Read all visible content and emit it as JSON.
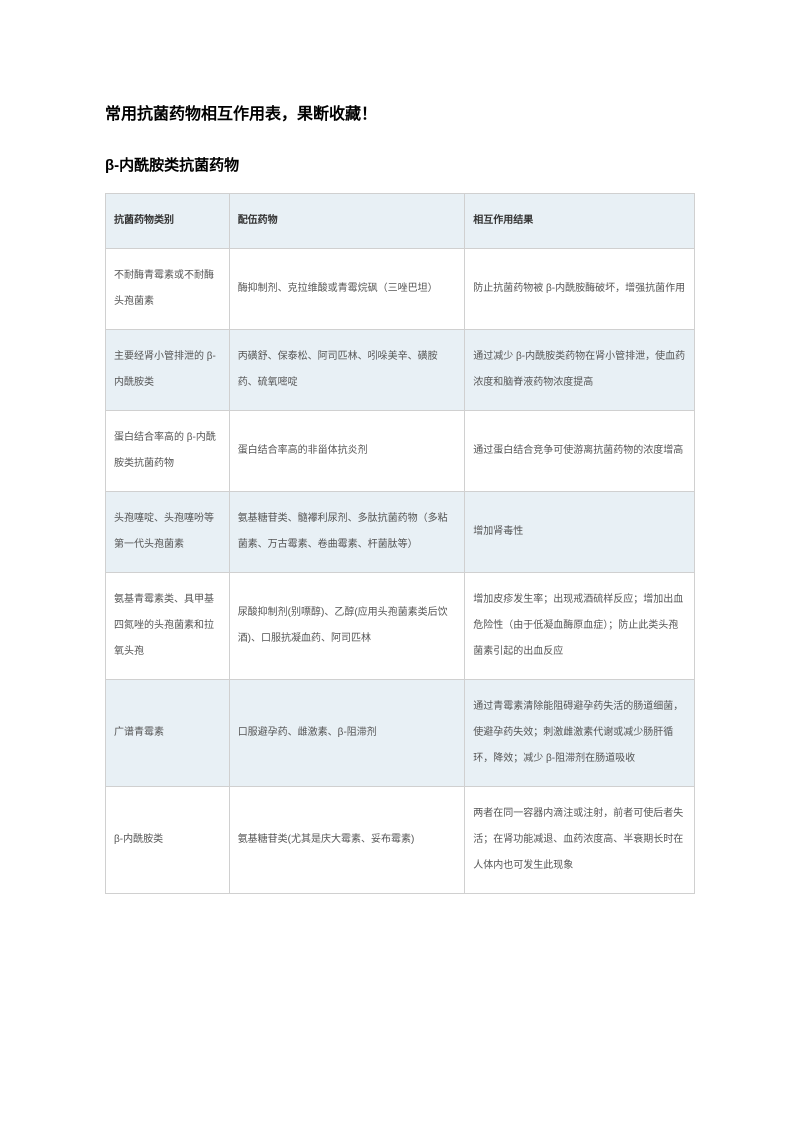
{
  "document": {
    "title": "常用抗菌药物相互作用表，果断收藏！",
    "subtitle": "β-内酰胺类抗菌药物"
  },
  "table": {
    "headers": {
      "col1": "抗菌药物类别",
      "col2": "配伍药物",
      "col3": "相互作用结果"
    },
    "rows": [
      {
        "col1": "不耐酶青霉素或不耐酶头孢菌素",
        "col2": "酶抑制剂、克拉维酸或青霉烷砜（三唑巴坦）",
        "col3": "防止抗菌药物被 β-内酰胺酶破坏，增强抗菌作用"
      },
      {
        "col1": "主要经肾小管排泄的 β-内酰胺类",
        "col2": "丙磺舒、保泰松、阿司匹林、吲哚美辛、磺胺药、硫氧嘧啶",
        "col3": "通过减少 β-内酰胺类药物在肾小管排泄，使血药浓度和脑脊液药物浓度提高"
      },
      {
        "col1": "蛋白结合率高的 β-内酰胺类抗菌药物",
        "col2": "蛋白结合率高的非甾体抗炎剂",
        "col3": "通过蛋白结合竞争可使游离抗菌药物的浓度增高"
      },
      {
        "col1": "头孢噻啶、头孢噻吩等第一代头孢菌素",
        "col2": "氨基糖苷类、髓襻利尿剂、多肽抗菌药物（多粘菌素、万古霉素、卷曲霉素、杆菌肽等）",
        "col3": "增加肾毒性"
      },
      {
        "col1": "氨基青霉素类、具甲基四氮唑的头孢菌素和拉氧头孢",
        "col2": "尿酸抑制剂(别嘌醇)、乙醇(应用头孢菌素类后饮酒)、口服抗凝血药、阿司匹林",
        "col3": "增加皮疹发生率；出现戒酒硫样反应；增加出血危险性（由于低凝血酶原血症）；防止此类头孢菌素引起的出血反应"
      },
      {
        "col1": "广谱青霉素",
        "col2": "口服避孕药、雌激素、β-阻滞剂",
        "col3": "通过青霉素清除能阻碍避孕药失活的肠道细菌，使避孕药失效；刺激雌激素代谢或减少肠肝循环，降效；减少 β-阻滞剂在肠道吸收"
      },
      {
        "col1": "β-内酰胺类",
        "col2": "氨基糖苷类(尤其是庆大霉素、妥布霉素)",
        "col3": "两者在同一容器内滴注或注射，前者可使后者失活；在肾功能减退、血药浓度高、半衰期长时在人体内也可发生此现象"
      }
    ]
  },
  "styling": {
    "background_color": "#ffffff",
    "header_bg_color": "#e8f0f5",
    "even_row_bg_color": "#e8f0f5",
    "odd_row_bg_color": "#ffffff",
    "border_color": "#d0d0d0",
    "title_color": "#000000",
    "text_color": "#555555",
    "title_fontsize": 16,
    "subtitle_fontsize": 15,
    "cell_fontsize": 10,
    "col_widths": [
      "21%",
      "40%",
      "39%"
    ]
  }
}
